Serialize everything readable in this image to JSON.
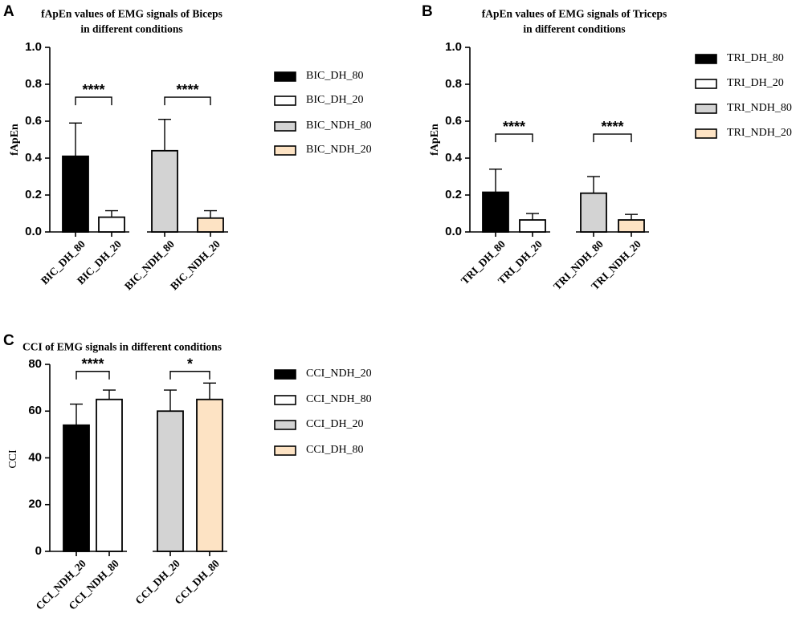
{
  "panels": [
    {
      "letter": "A",
      "title": [
        "fApEn values of EMG signals of Biceps",
        "in different conditions"
      ],
      "ylabel": "fApEn",
      "ylim": [
        0,
        1.0
      ],
      "yticks": [
        "0.0",
        "0.2",
        "0.4",
        "0.6",
        "0.8",
        "1.0"
      ],
      "categories": [
        "BIC_DH_80",
        "BIC_DH_20",
        "BIC_NDH_80",
        "BIC_NDH_20"
      ],
      "values": [
        0.41,
        0.08,
        0.44,
        0.075
      ],
      "errors": [
        0.18,
        0.035,
        0.17,
        0.04
      ],
      "legend": [
        "BIC_DH_80",
        "BIC_DH_20",
        "BIC_NDH_80",
        "BIC_NDH_20"
      ],
      "significance": [
        {
          "pair": [
            0,
            1
          ],
          "label": "****",
          "level": 0.73
        },
        {
          "pair": [
            2,
            3
          ],
          "label": "****",
          "level": 0.73
        }
      ]
    },
    {
      "letter": "B",
      "title": [
        "fApEn values of EMG signals of Triceps",
        "in different conditions"
      ],
      "ylabel": "fApEn",
      "ylim": [
        0,
        1.0
      ],
      "yticks": [
        "0.0",
        "0.2",
        "0.4",
        "0.6",
        "0.8",
        "1.0"
      ],
      "categories": [
        "TRI_DH_80",
        "TRI_DH_20",
        "TRI_NDH_80",
        "TRI_NDH_20"
      ],
      "values": [
        0.215,
        0.065,
        0.21,
        0.065
      ],
      "errors": [
        0.125,
        0.035,
        0.09,
        0.03
      ],
      "legend": [
        "TRI_DH_80",
        "TRI_DH_20",
        "TRI_NDH_80",
        "TRI_NDH_20"
      ],
      "significance": [
        {
          "pair": [
            0,
            1
          ],
          "label": "****",
          "level": 0.53
        },
        {
          "pair": [
            2,
            3
          ],
          "label": "****",
          "level": 0.53
        }
      ]
    },
    {
      "letter": "C",
      "title": [
        "CCI of EMG signals in different conditions"
      ],
      "ylabel": "CCI",
      "ylim": [
        0,
        80
      ],
      "yticks": [
        "0",
        "20",
        "40",
        "60",
        "80"
      ],
      "categories": [
        "CCI_NDH_20",
        "CCI_NDH_80",
        "CCI_DH_20",
        "CCI_DH_80"
      ],
      "values": [
        54,
        65,
        60,
        65
      ],
      "errors": [
        9,
        4,
        9,
        7
      ],
      "legend": [
        "CCI_NDH_20",
        "CCI_NDH_80",
        "CCI_DH_20",
        "CCI_DH_80"
      ],
      "significance": [
        {
          "pair": [
            0,
            1
          ],
          "label": "****",
          "level": 77
        },
        {
          "pair": [
            2,
            3
          ],
          "label": "*",
          "level": 77
        }
      ]
    }
  ],
  "fills": [
    "#000000",
    "#ffffff",
    "#d3d3d3",
    "#fde3c4"
  ],
  "chart_data": [
    {
      "type": "bar",
      "title": "fApEn values of EMG signals of Biceps in different conditions",
      "ylabel": "fApEn",
      "ylim": [
        0,
        1.0
      ],
      "categories": [
        "BIC_DH_80",
        "BIC_DH_20",
        "BIC_NDH_80",
        "BIC_NDH_20"
      ],
      "values": [
        0.41,
        0.08,
        0.44,
        0.075
      ],
      "errors": [
        0.18,
        0.035,
        0.17,
        0.04
      ]
    },
    {
      "type": "bar",
      "title": "fApEn values of EMG signals of Triceps in different conditions",
      "ylabel": "fApEn",
      "ylim": [
        0,
        1.0
      ],
      "categories": [
        "TRI_DH_80",
        "TRI_DH_20",
        "TRI_NDH_80",
        "TRI_NDH_20"
      ],
      "values": [
        0.215,
        0.065,
        0.21,
        0.065
      ],
      "errors": [
        0.125,
        0.035,
        0.09,
        0.03
      ]
    },
    {
      "type": "bar",
      "title": "CCI of EMG signals in different conditions",
      "ylabel": "CCI",
      "ylim": [
        0,
        80
      ],
      "categories": [
        "CCI_NDH_20",
        "CCI_NDH_80",
        "CCI_DH_20",
        "CCI_DH_80"
      ],
      "values": [
        54,
        65,
        60,
        65
      ],
      "errors": [
        9,
        4,
        9,
        7
      ]
    }
  ]
}
